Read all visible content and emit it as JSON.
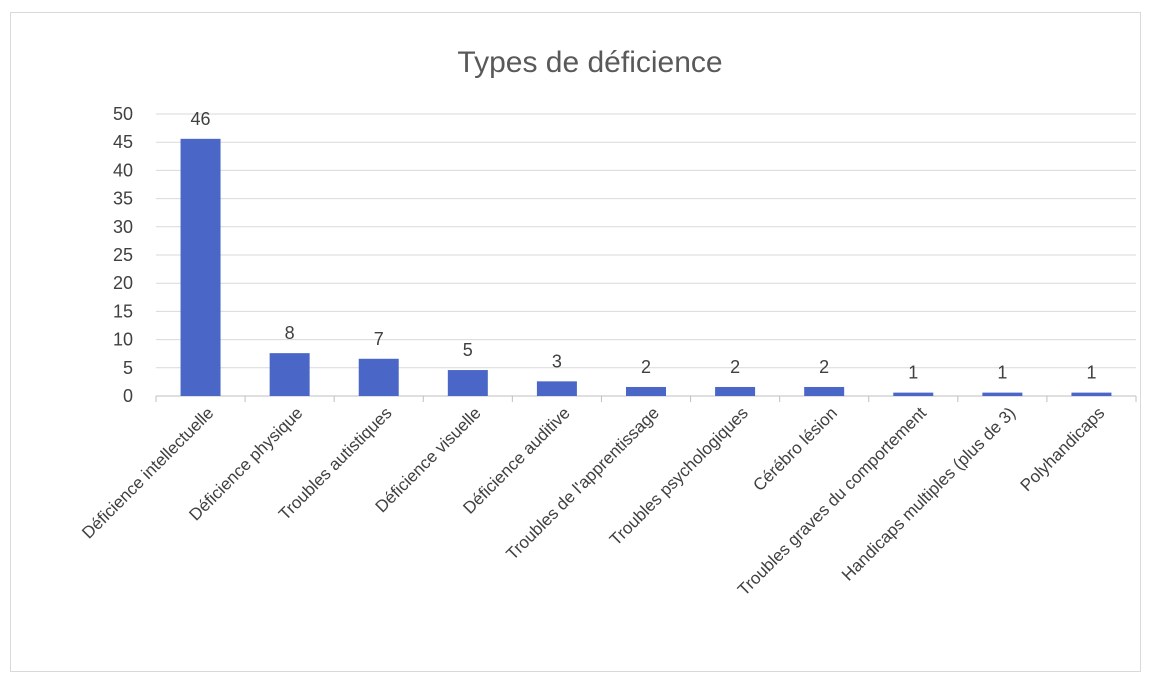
{
  "chart_data": {
    "type": "bar",
    "title": "Types de déficience",
    "xlabel": "",
    "ylabel": "",
    "categories": [
      "Déficience intellectuelle",
      "Déficience physique",
      "Troubles autistiques",
      "Déficience visuelle",
      "Déficience auditive",
      "Troubles de l'apprentissage",
      "Troubles psychologiques",
      "Cérébro lésion",
      "Troubles graves du comportement",
      "Handicaps multiples (plus de 3)",
      "Polyhandicaps"
    ],
    "values": [
      45.6,
      7.6,
      6.6,
      4.6,
      2.6,
      1.6,
      1.6,
      1.6,
      0.6,
      0.6,
      0.6
    ],
    "data_labels": [
      "46",
      "8",
      "7",
      "5",
      "3",
      "2",
      "2",
      "2",
      "1",
      "1",
      "1"
    ],
    "ylim": [
      0,
      50
    ],
    "yticks": [
      0,
      5,
      10,
      15,
      20,
      25,
      30,
      35,
      40,
      45,
      50
    ],
    "grid": true,
    "legend": "none",
    "bar_color": "#4a67c8"
  }
}
